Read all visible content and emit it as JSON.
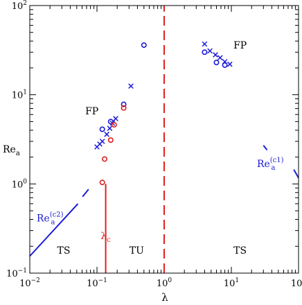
{
  "chart_data": {
    "type": "scatter",
    "title": "",
    "xlabel": "λ",
    "ylabel": "Re",
    "ylabel_sub": "a",
    "xscale": "log",
    "yscale": "log",
    "xlim": [
      0.01,
      100
    ],
    "ylim": [
      0.1,
      100
    ],
    "x_ticks": [
      {
        "value": 0.01,
        "base": "10",
        "exp": "−2"
      },
      {
        "value": 0.1,
        "base": "10",
        "exp": "−1"
      },
      {
        "value": 1,
        "base": "10",
        "exp": "0"
      },
      {
        "value": 10,
        "base": "10",
        "exp": "1"
      },
      {
        "value": 100,
        "base": "10",
        "exp": "2"
      }
    ],
    "y_ticks": [
      {
        "value": 0.1,
        "base": "10",
        "exp": "−1"
      },
      {
        "value": 1,
        "base": "10",
        "exp": "0"
      },
      {
        "value": 10,
        "base": "10",
        "exp": "1"
      },
      {
        "value": 100,
        "base": "10",
        "exp": "2"
      }
    ],
    "grid": false,
    "colors": {
      "blue": "#1a1ad6",
      "red": "#e02020",
      "black": "#000000"
    },
    "series": [
      {
        "marker": "cross",
        "color": "#1a1ad6",
        "points": [
          [
            0.1,
            2.6
          ],
          [
            0.11,
            2.8
          ],
          [
            0.12,
            3.0
          ],
          [
            0.14,
            3.6
          ],
          [
            0.155,
            4.2
          ],
          [
            0.17,
            4.8
          ],
          [
            0.19,
            5.4
          ],
          [
            0.32,
            12.5
          ],
          [
            4.0,
            37
          ],
          [
            4.8,
            31
          ],
          [
            5.8,
            28
          ],
          [
            6.8,
            26
          ],
          [
            8.0,
            23.5
          ],
          [
            9.5,
            22
          ]
        ]
      },
      {
        "marker": "circle",
        "color": "#1a1ad6",
        "points": [
          [
            0.12,
            4.1
          ],
          [
            0.16,
            5.0
          ],
          [
            0.25,
            7.8
          ],
          [
            0.5,
            36
          ],
          [
            4.0,
            30
          ],
          [
            6.0,
            23
          ],
          [
            8.0,
            21.5
          ]
        ]
      },
      {
        "marker": "circle",
        "color": "#e02020",
        "points": [
          [
            0.12,
            1.04
          ],
          [
            0.13,
            1.9
          ],
          [
            0.16,
            3.1
          ],
          [
            0.18,
            4.6
          ],
          [
            0.25,
            7.1
          ]
        ]
      }
    ],
    "curves": [
      {
        "name": "Re_a^(c2)",
        "color": "#1a1ad6",
        "dash": "",
        "points": [
          [
            0.01,
            0.155
          ],
          [
            0.052,
            0.6
          ]
        ]
      },
      {
        "name": "Re_a^(c2)",
        "color": "#1a1ad6",
        "dash": "",
        "points": [
          [
            0.061,
            0.72
          ],
          [
            0.075,
            0.87
          ]
        ]
      },
      {
        "name": "Re_a^(c1)",
        "color": "#1a1ad6",
        "dash": "",
        "points": [
          [
            30,
            2.7
          ],
          [
            34,
            2.4
          ]
        ]
      },
      {
        "name": "Re_a^(c1)",
        "color": "#1a1ad6",
        "dash": "",
        "points": [
          [
            85,
            1.45
          ],
          [
            100,
            1.17
          ]
        ]
      },
      {
        "name": "λ_c",
        "color": "#e02020",
        "dash": "",
        "points": [
          [
            0.135,
            1.0
          ],
          [
            0.135,
            0.1
          ]
        ]
      },
      {
        "name": "TU/TS boundary",
        "color": "#e02020",
        "dash": "dashed",
        "points": [
          [
            1.0,
            0.1
          ],
          [
            1.0,
            100
          ]
        ]
      }
    ],
    "annotations": [
      {
        "text": "FP",
        "x": 0.084,
        "y": 6.0,
        "color": "#000000"
      },
      {
        "text": "FP",
        "x": 13.5,
        "y": 33,
        "color": "#000000"
      },
      {
        "text": "TS",
        "x": 0.032,
        "y": 0.165,
        "color": "#000000"
      },
      {
        "text": "TU",
        "x": 0.39,
        "y": 0.165,
        "color": "#000000"
      },
      {
        "text": "TS",
        "x": 13.5,
        "y": 0.165,
        "color": "#000000"
      }
    ],
    "curve_labels": [
      {
        "base": "Re",
        "sub": "a",
        "sup": "(c2)",
        "x": 0.02,
        "y": 0.38,
        "color": "#1a1ad6"
      },
      {
        "base": "Re",
        "sub": "a",
        "sup": "(c1)",
        "x": 38,
        "y": 1.55,
        "color": "#1a1ad6"
      },
      {
        "base": "λ",
        "sub": "c",
        "sup": "",
        "x": 0.135,
        "y": 0.24,
        "color": "#e02020"
      }
    ]
  }
}
